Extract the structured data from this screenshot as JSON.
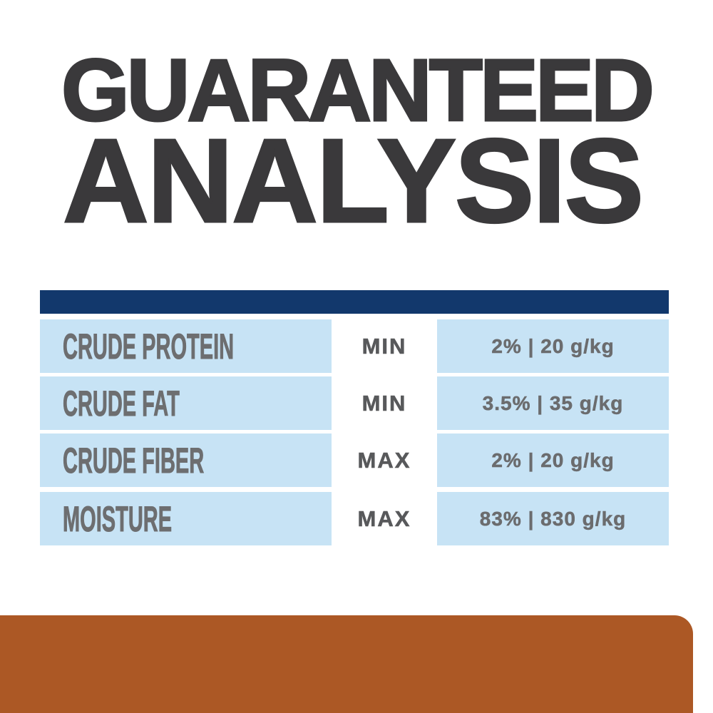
{
  "title": {
    "line1": "GUARANTEED",
    "line2": "ANALYSIS"
  },
  "table": {
    "rows": [
      {
        "label": "CRUDE PROTEIN",
        "qualifier": "MIN",
        "value": "2% | 20 g/kg"
      },
      {
        "label": "CRUDE FAT",
        "qualifier": "MIN",
        "value": "3.5% | 35 g/kg"
      },
      {
        "label": "CRUDE FIBER",
        "qualifier": "MAX",
        "value": "2% | 20 g/kg"
      },
      {
        "label": "MOISTURE",
        "qualifier": "MAX",
        "value": "83% | 830 g/kg"
      }
    ]
  },
  "colors": {
    "navy": "#12386c",
    "light-blue": "#c7e3f5",
    "orange": "#ac5825",
    "title": "#3a393b",
    "label-gray": "#6d6e70",
    "qualifier-gray": "#58595b",
    "value-gray": "#6b6c6e"
  }
}
